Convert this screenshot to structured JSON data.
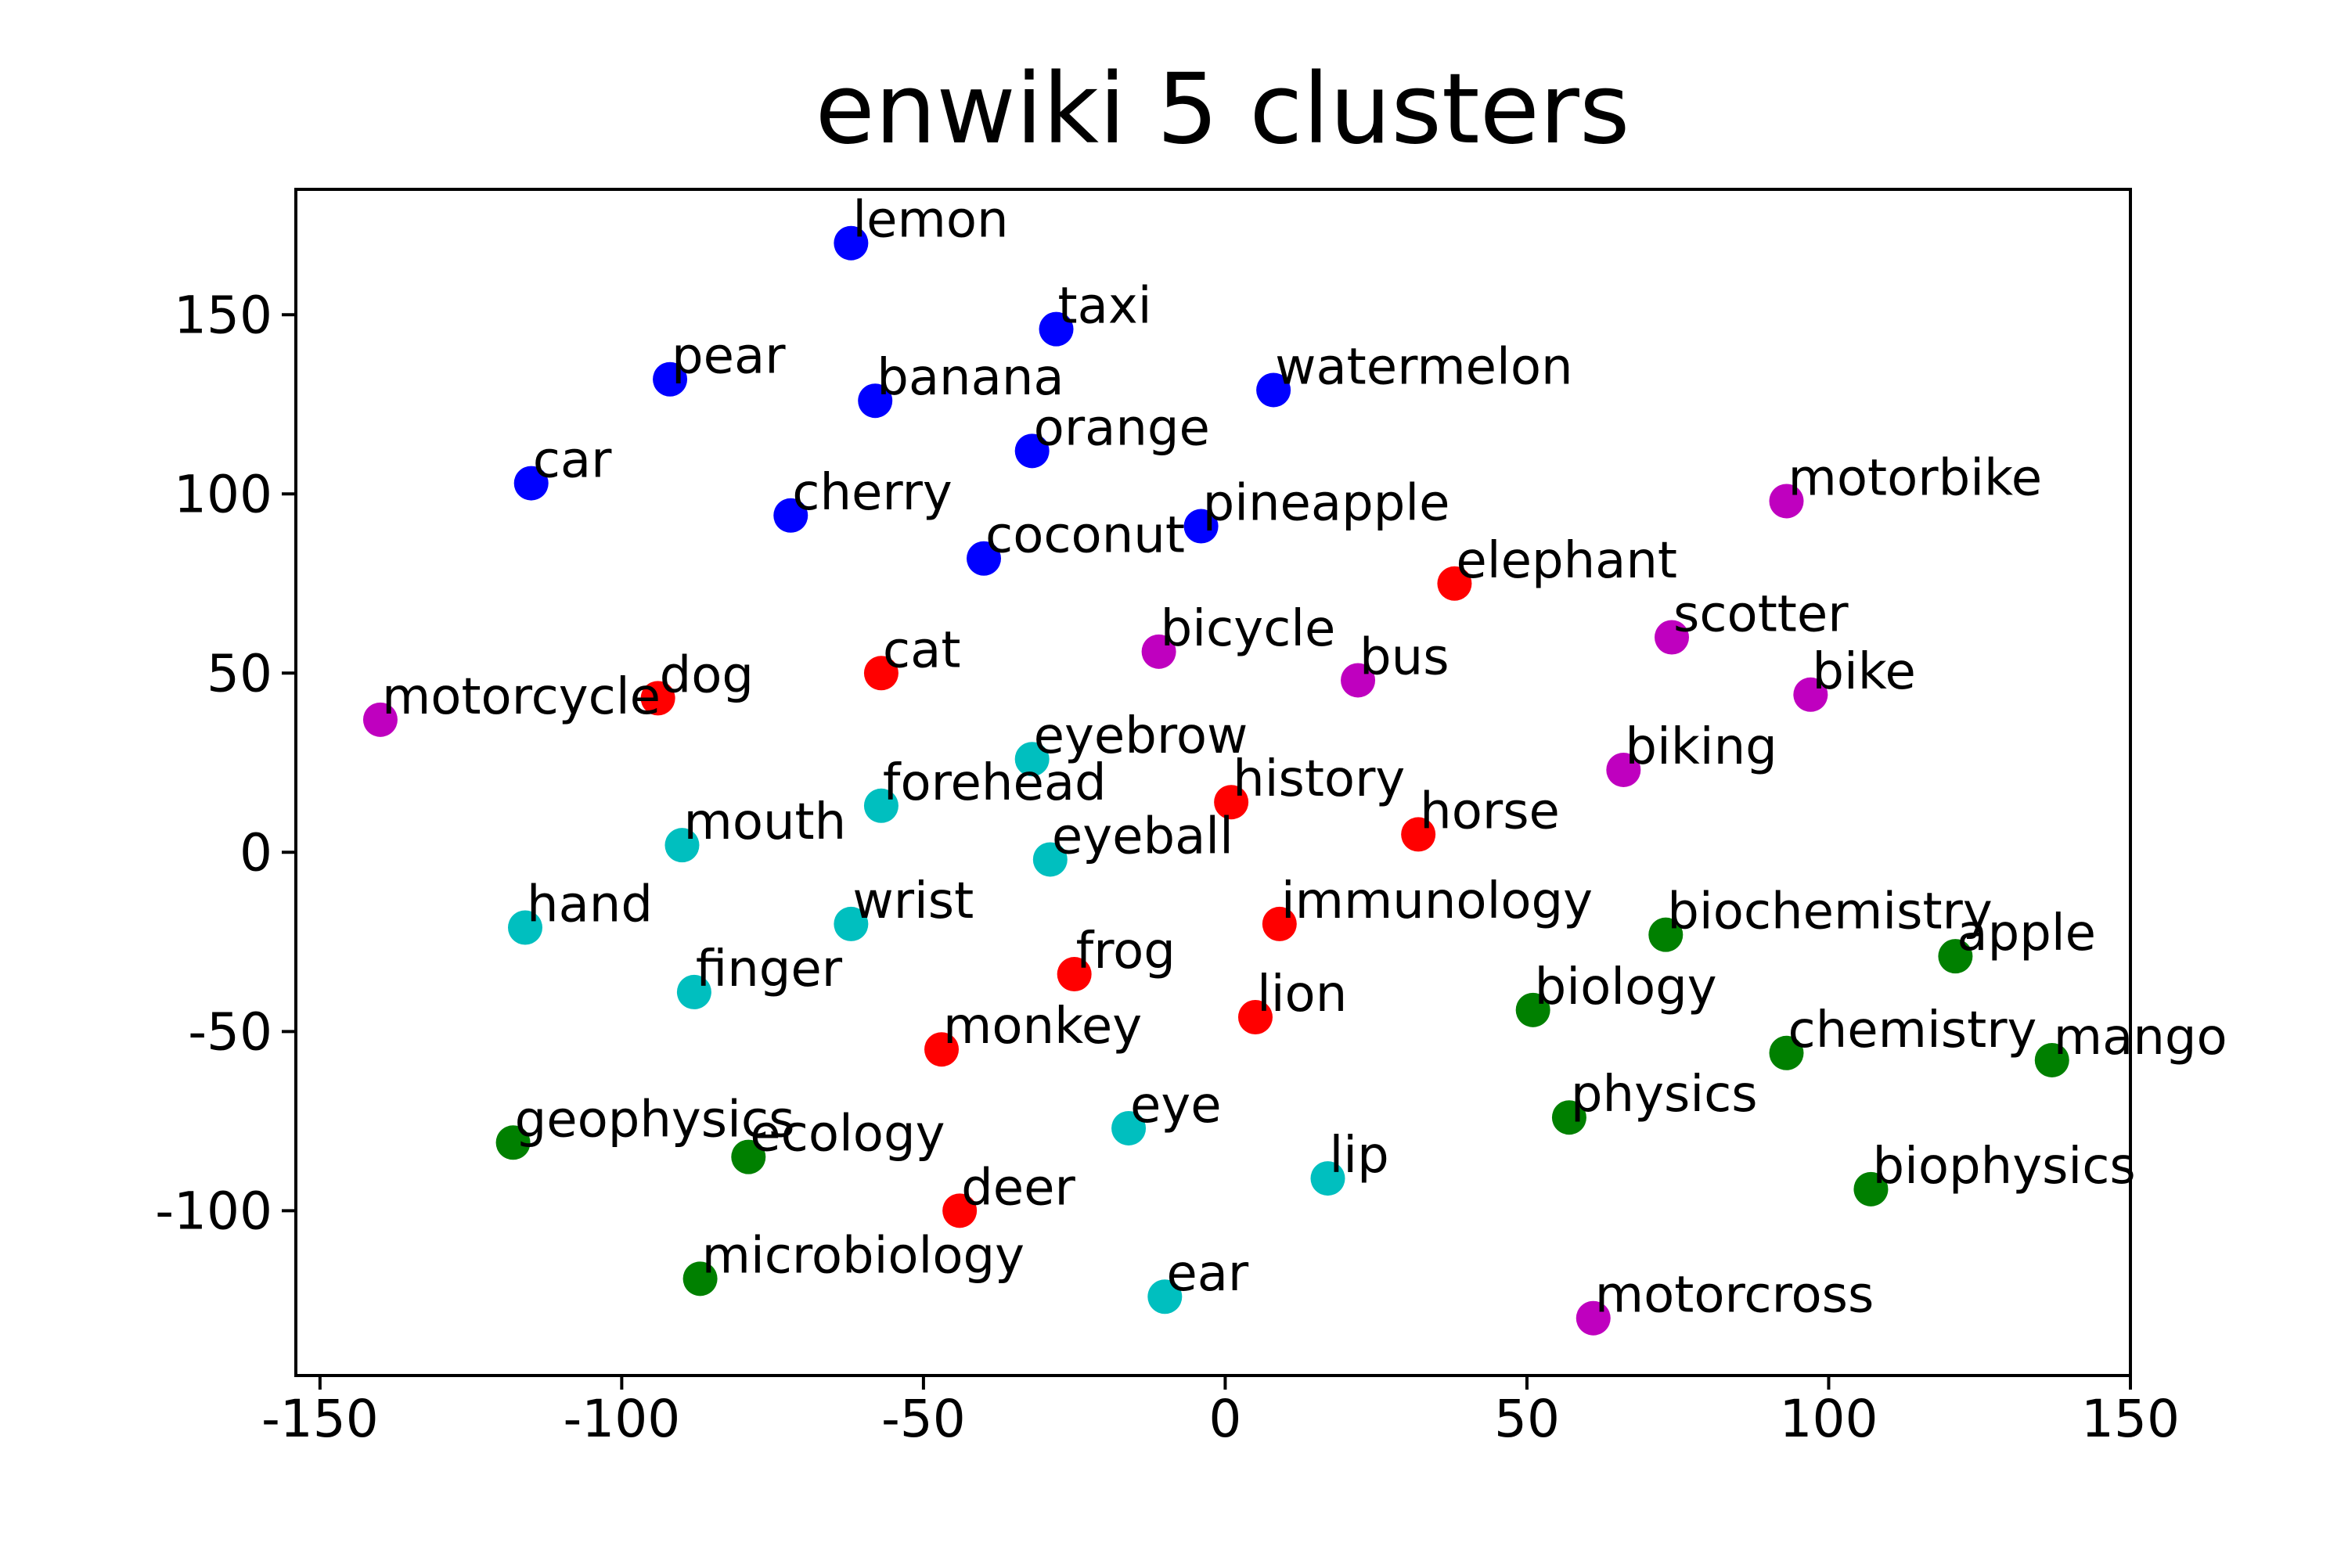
{
  "chart_data": {
    "type": "scatter",
    "title": "enwiki 5 clusters",
    "xlabel": "",
    "ylabel": "",
    "xlim": [
      -154,
      150
    ],
    "ylim": [
      -146,
      185
    ],
    "xticks": [
      -150,
      -100,
      -50,
      0,
      50,
      100,
      150
    ],
    "xtick_labels": [
      "-150",
      "-100",
      "-50",
      "0",
      "50",
      "100",
      "150"
    ],
    "yticks": [
      -100,
      -50,
      0,
      50,
      100,
      150
    ],
    "ytick_labels": [
      "-100",
      "-50",
      "0",
      "50",
      "100",
      "150"
    ],
    "grid": false,
    "legend": false,
    "cluster_colors": [
      "#0000ff",
      "#ff0000",
      "#bf00bf",
      "#00bfbf",
      "#008000"
    ],
    "points": [
      {
        "label": "lemon",
        "x": -62,
        "y": 170,
        "cluster": 0
      },
      {
        "label": "taxi",
        "x": -28,
        "y": 146,
        "cluster": 0
      },
      {
        "label": "pear",
        "x": -92,
        "y": 132,
        "cluster": 0
      },
      {
        "label": "banana",
        "x": -58,
        "y": 126,
        "cluster": 0
      },
      {
        "label": "watermelon",
        "x": 8,
        "y": 129,
        "cluster": 0
      },
      {
        "label": "orange",
        "x": -32,
        "y": 112,
        "cluster": 0
      },
      {
        "label": "car",
        "x": -115,
        "y": 103,
        "cluster": 0
      },
      {
        "label": "cherry",
        "x": -72,
        "y": 94,
        "cluster": 0
      },
      {
        "label": "pineapple",
        "x": -4,
        "y": 91,
        "cluster": 0
      },
      {
        "label": "coconut",
        "x": -40,
        "y": 82,
        "cluster": 0
      },
      {
        "label": "elephant",
        "x": 38,
        "y": 75,
        "cluster": 1
      },
      {
        "label": "cat",
        "x": -57,
        "y": 50,
        "cluster": 1
      },
      {
        "label": "dog",
        "x": -94,
        "y": 43,
        "cluster": 1
      },
      {
        "label": "history",
        "x": 1,
        "y": 14,
        "cluster": 1
      },
      {
        "label": "horse",
        "x": 32,
        "y": 5,
        "cluster": 1
      },
      {
        "label": "immunology",
        "x": 9,
        "y": -20,
        "cluster": 1
      },
      {
        "label": "frog",
        "x": -25,
        "y": -34,
        "cluster": 1
      },
      {
        "label": "lion",
        "x": 5,
        "y": -46,
        "cluster": 1
      },
      {
        "label": "monkey",
        "x": -47,
        "y": -55,
        "cluster": 1
      },
      {
        "label": "deer",
        "x": -44,
        "y": -100,
        "cluster": 1
      },
      {
        "label": "motorbike",
        "x": 93,
        "y": 98,
        "cluster": 2
      },
      {
        "label": "scotter",
        "x": 74,
        "y": 60,
        "cluster": 2
      },
      {
        "label": "bicycle",
        "x": -11,
        "y": 56,
        "cluster": 2
      },
      {
        "label": "bus",
        "x": 22,
        "y": 48,
        "cluster": 2
      },
      {
        "label": "bike",
        "x": 97,
        "y": 44,
        "cluster": 2
      },
      {
        "label": "motorcycle",
        "x": -140,
        "y": 37,
        "cluster": 2
      },
      {
        "label": "biking",
        "x": 66,
        "y": 23,
        "cluster": 2
      },
      {
        "label": "motorcross",
        "x": 61,
        "y": -130,
        "cluster": 2
      },
      {
        "label": "eyebrow",
        "x": -32,
        "y": 26,
        "cluster": 3
      },
      {
        "label": "forehead",
        "x": -57,
        "y": 13,
        "cluster": 3
      },
      {
        "label": "mouth",
        "x": -90,
        "y": 2,
        "cluster": 3
      },
      {
        "label": "eyeball",
        "x": -29,
        "y": -2,
        "cluster": 3
      },
      {
        "label": "hand",
        "x": -116,
        "y": -21,
        "cluster": 3
      },
      {
        "label": "wrist",
        "x": -62,
        "y": -20,
        "cluster": 3
      },
      {
        "label": "finger",
        "x": -88,
        "y": -39,
        "cluster": 3
      },
      {
        "label": "eye",
        "x": -16,
        "y": -77,
        "cluster": 3
      },
      {
        "label": "lip",
        "x": 17,
        "y": -91,
        "cluster": 3
      },
      {
        "label": "ear",
        "x": -10,
        "y": -124,
        "cluster": 3
      },
      {
        "label": "biochemistry",
        "x": 73,
        "y": -23,
        "cluster": 4
      },
      {
        "label": "apple",
        "x": 121,
        "y": -29,
        "cluster": 4
      },
      {
        "label": "biology",
        "x": 51,
        "y": -44,
        "cluster": 4
      },
      {
        "label": "chemistry",
        "x": 93,
        "y": -56,
        "cluster": 4
      },
      {
        "label": "mango",
        "x": 137,
        "y": -58,
        "cluster": 4
      },
      {
        "label": "physics",
        "x": 57,
        "y": -74,
        "cluster": 4
      },
      {
        "label": "geophysics",
        "x": -118,
        "y": -81,
        "cluster": 4
      },
      {
        "label": "ecology",
        "x": -79,
        "y": -85,
        "cluster": 4
      },
      {
        "label": "biophysics",
        "x": 107,
        "y": -94,
        "cluster": 4
      },
      {
        "label": "microbiology",
        "x": -87,
        "y": -119,
        "cluster": 4
      }
    ]
  }
}
